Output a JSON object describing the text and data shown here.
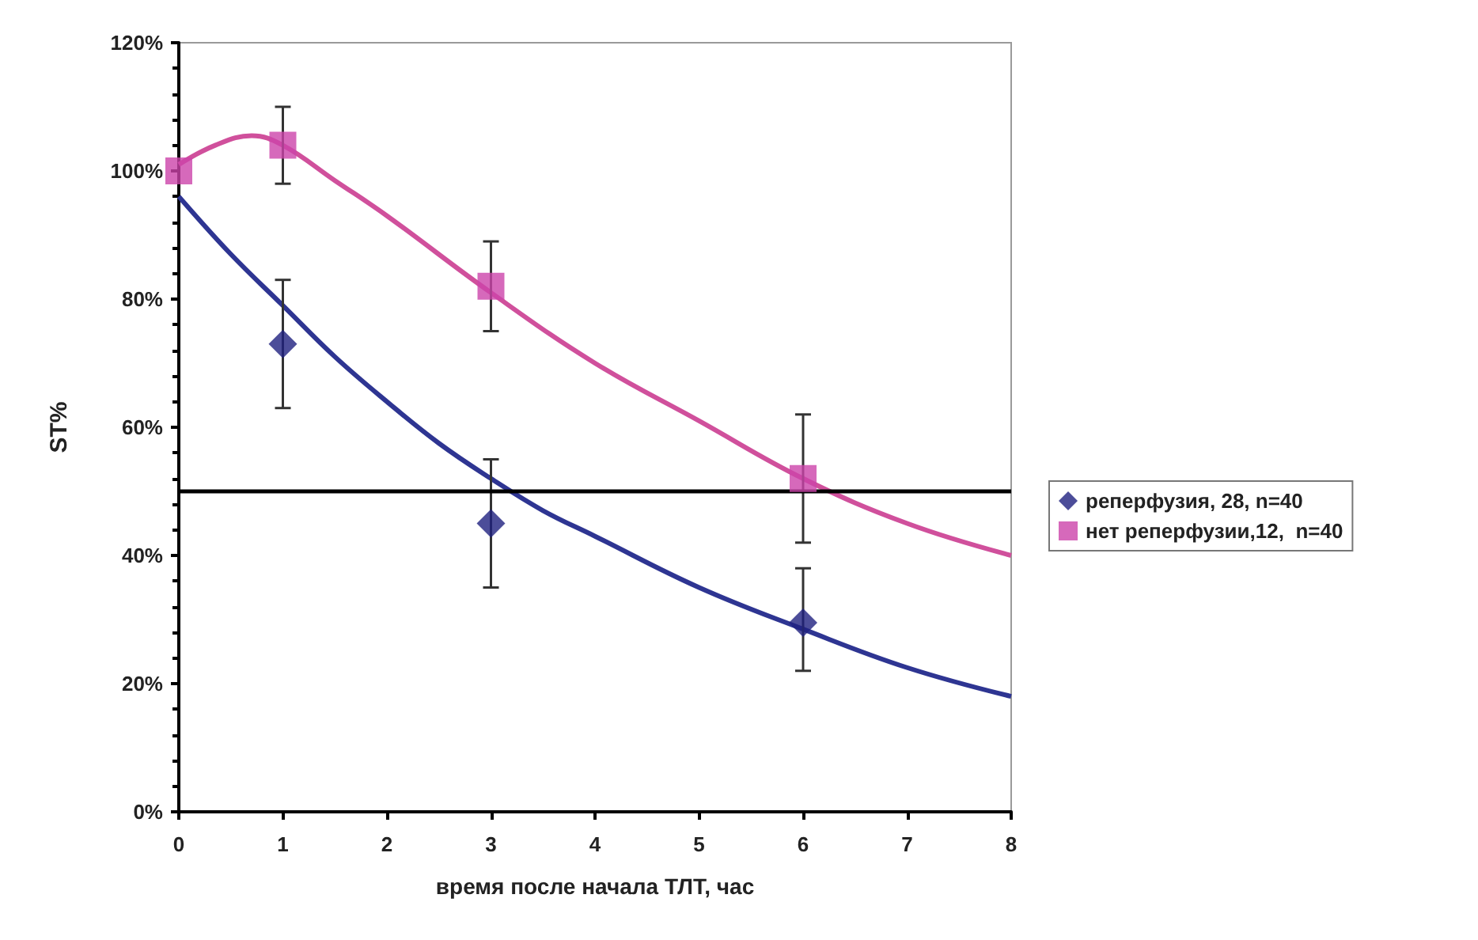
{
  "chart_data": {
    "type": "scatter",
    "xlabel": "время после начала ТЛТ, час",
    "ylabel": "ST%",
    "x": [
      0,
      1,
      3,
      6
    ],
    "xlim": [
      0,
      8
    ],
    "xticks": [
      0,
      1,
      2,
      3,
      4,
      5,
      6,
      7,
      8
    ],
    "ylim": [
      0,
      120
    ],
    "yticks": [
      {
        "value": 0,
        "label": "0%"
      },
      {
        "value": 20,
        "label": "20%"
      },
      {
        "value": 40,
        "label": "40%"
      },
      {
        "value": 60,
        "label": "60%"
      },
      {
        "value": 80,
        "label": "80%"
      },
      {
        "value": 100,
        "label": "100%"
      },
      {
        "value": 120,
        "label": "120%"
      }
    ],
    "grid": false,
    "legend": "right",
    "series": [
      {
        "name": "реперфузия, 28, n=40",
        "color": "#1f2080",
        "marker": "diamond",
        "values": [
          null,
          73,
          45,
          29.5
        ],
        "errors": [
          null,
          10,
          10,
          [
            22,
            38
          ]
        ]
      },
      {
        "name": "нет реперфузии,12,  n=40",
        "color": "#cc44aa",
        "marker": "square",
        "values": [
          100,
          104,
          82,
          52
        ],
        "errors": [
          null,
          [
            98,
            110
          ],
          [
            75,
            89
          ],
          10
        ]
      },
      {
        "type": "line",
        "color": "#2e3592",
        "marker": "none",
        "x": [
          0,
          0.5,
          1,
          1.5,
          2,
          2.5,
          3,
          3.5,
          4,
          5,
          6,
          7,
          8
        ],
        "values": [
          96,
          87,
          79,
          71,
          64,
          57.5,
          52,
          47,
          43,
          35,
          28.5,
          22.5,
          18
        ]
      },
      {
        "type": "line",
        "color": "#d0509c",
        "marker": "none",
        "x": [
          0,
          0.35,
          0.7,
          1,
          1.5,
          2,
          3,
          4,
          5,
          6,
          7,
          8
        ],
        "values": [
          101,
          104,
          105.5,
          104,
          98.5,
          93,
          81,
          70,
          61,
          52,
          45,
          40
        ]
      }
    ],
    "ref_lines": [
      {
        "axis": "y",
        "value": 50,
        "color": "#000000"
      }
    ]
  }
}
